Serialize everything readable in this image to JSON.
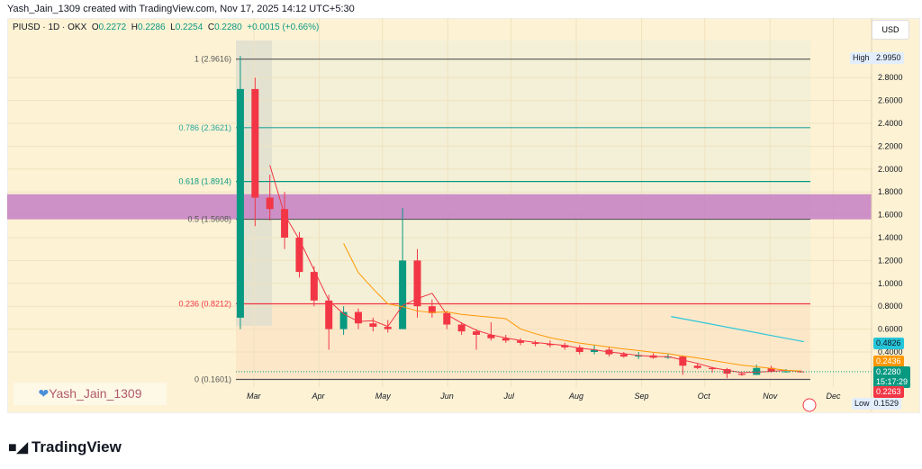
{
  "credit": "Yash_Jain_1309 created with TradingView.com, Nov 17, 2025 14:12 UTC+5:30",
  "legend": {
    "symbol": "PIUSD · 1D · OKX",
    "o_label": "O",
    "o": "0.2272",
    "h_label": "H",
    "h": "0.2286",
    "l_label": "L",
    "l": "0.2254",
    "c_label": "C",
    "c": "0.2280",
    "change": "+0.0015 (+0.66%)"
  },
  "currency_button": "USD",
  "watermark": "Yash_Jain_1309",
  "watermark_icon": "heart-icon",
  "brand": "TradingView",
  "price_tags": {
    "high_label": "High",
    "high": "2.9950",
    "low_label": "Low",
    "low": "0.1529",
    "cyan": "0.4826",
    "orange": "0.2436",
    "last": "0.2280",
    "countdown": "15:17:29",
    "red": "0.2263"
  },
  "colors": {
    "up": "#089981",
    "down": "#f23645",
    "ma_fast": "#f23645",
    "ma_slow": "#ff9800",
    "trend": "#26c6da",
    "zone": "#c47fc4"
  },
  "chart_data": {
    "type": "candlestick",
    "ylim": [
      0.1,
      3.05
    ],
    "y_ticks": [
      "2.8000",
      "2.6000",
      "2.4000",
      "2.2000",
      "2.0000",
      "1.8000",
      "1.6000",
      "1.4000",
      "1.2000",
      "1.0000",
      "0.8000",
      "0.6000",
      "0.4000"
    ],
    "x_ticks": [
      [
        "Mar",
        "2025-03-01"
      ],
      [
        "Apr",
        "2025-04-01"
      ],
      [
        "May",
        "2025-05-01"
      ],
      [
        "Jun",
        "2025-06-01"
      ],
      [
        "Jul",
        "2025-07-01"
      ],
      [
        "Aug",
        "2025-08-01"
      ],
      [
        "Sep",
        "2025-09-01"
      ],
      [
        "Oct",
        "2025-10-01"
      ],
      [
        "Nov",
        "2025-11-01"
      ],
      [
        "Dec",
        "2025-12-01"
      ]
    ],
    "xlim": [
      "2025-02-14",
      "2025-12-20"
    ],
    "fib_levels": [
      {
        "label": "1 (2.9616)",
        "value": 2.9616,
        "color": "#555555"
      },
      {
        "label": "0.786 (2.3621)",
        "value": 2.3621,
        "color": "#26a69a"
      },
      {
        "label": "0.618 (1.8914)",
        "value": 1.8914,
        "color": "#089981"
      },
      {
        "label": "0.5 (1.5608)",
        "value": 1.5608,
        "color": "#555555"
      },
      {
        "label": "0.236 (0.8212)",
        "value": 0.8212,
        "color": "#f23645"
      },
      {
        "label": "0 (0.1601)",
        "value": 0.1601,
        "color": "#555555"
      }
    ],
    "zone": [
      1.56,
      1.78
    ],
    "trend_line": [
      [
        "2025-09-15",
        0.71
      ],
      [
        "2025-11-17",
        0.49
      ]
    ],
    "candles_weekly": [
      [
        "2025-02-20",
        0.7,
        2.99,
        0.6,
        2.7
      ],
      [
        "2025-02-27",
        2.7,
        2.8,
        1.5,
        1.75
      ],
      [
        "2025-03-06",
        1.75,
        1.95,
        1.55,
        1.65
      ],
      [
        "2025-03-13",
        1.65,
        1.8,
        1.3,
        1.4
      ],
      [
        "2025-03-20",
        1.4,
        1.45,
        1.05,
        1.1
      ],
      [
        "2025-03-27",
        1.1,
        1.15,
        0.8,
        0.85
      ],
      [
        "2025-04-03",
        0.85,
        0.9,
        0.42,
        0.6
      ],
      [
        "2025-04-10",
        0.6,
        0.8,
        0.55,
        0.75
      ],
      [
        "2025-04-17",
        0.75,
        0.78,
        0.6,
        0.65
      ],
      [
        "2025-04-24",
        0.65,
        0.7,
        0.58,
        0.62
      ],
      [
        "2025-05-01",
        0.62,
        0.68,
        0.57,
        0.6
      ],
      [
        "2025-05-08",
        0.6,
        1.66,
        0.6,
        1.2
      ],
      [
        "2025-05-15",
        1.2,
        1.3,
        0.7,
        0.8
      ],
      [
        "2025-05-22",
        0.8,
        0.86,
        0.7,
        0.74
      ],
      [
        "2025-05-29",
        0.74,
        0.76,
        0.6,
        0.64
      ],
      [
        "2025-06-05",
        0.64,
        0.66,
        0.55,
        0.58
      ],
      [
        "2025-06-12",
        0.58,
        0.6,
        0.42,
        0.55
      ],
      [
        "2025-06-19",
        0.55,
        0.66,
        0.5,
        0.52
      ],
      [
        "2025-06-26",
        0.52,
        0.55,
        0.48,
        0.5
      ],
      [
        "2025-07-03",
        0.5,
        0.52,
        0.46,
        0.48
      ],
      [
        "2025-07-10",
        0.48,
        0.5,
        0.45,
        0.47
      ],
      [
        "2025-07-17",
        0.47,
        0.5,
        0.44,
        0.46
      ],
      [
        "2025-07-24",
        0.46,
        0.48,
        0.42,
        0.44
      ],
      [
        "2025-07-31",
        0.44,
        0.46,
        0.38,
        0.4
      ],
      [
        "2025-08-07",
        0.4,
        0.46,
        0.38,
        0.42
      ],
      [
        "2025-08-14",
        0.42,
        0.44,
        0.36,
        0.38
      ],
      [
        "2025-08-21",
        0.38,
        0.4,
        0.35,
        0.36
      ],
      [
        "2025-08-28",
        0.36,
        0.4,
        0.34,
        0.37
      ],
      [
        "2025-09-04",
        0.37,
        0.39,
        0.34,
        0.35
      ],
      [
        "2025-09-11",
        0.35,
        0.38,
        0.34,
        0.36
      ],
      [
        "2025-09-18",
        0.36,
        0.37,
        0.2,
        0.28
      ],
      [
        "2025-09-25",
        0.28,
        0.3,
        0.25,
        0.26
      ],
      [
        "2025-10-02",
        0.26,
        0.27,
        0.22,
        0.25
      ],
      [
        "2025-10-09",
        0.25,
        0.26,
        0.17,
        0.21
      ],
      [
        "2025-10-16",
        0.21,
        0.22,
        0.19,
        0.2
      ],
      [
        "2025-10-23",
        0.2,
        0.29,
        0.2,
        0.26
      ],
      [
        "2025-10-30",
        0.26,
        0.28,
        0.22,
        0.23
      ],
      [
        "2025-11-06",
        0.23,
        0.25,
        0.22,
        0.23
      ],
      [
        "2025-11-13",
        0.23,
        0.24,
        0.22,
        0.228
      ]
    ]
  }
}
